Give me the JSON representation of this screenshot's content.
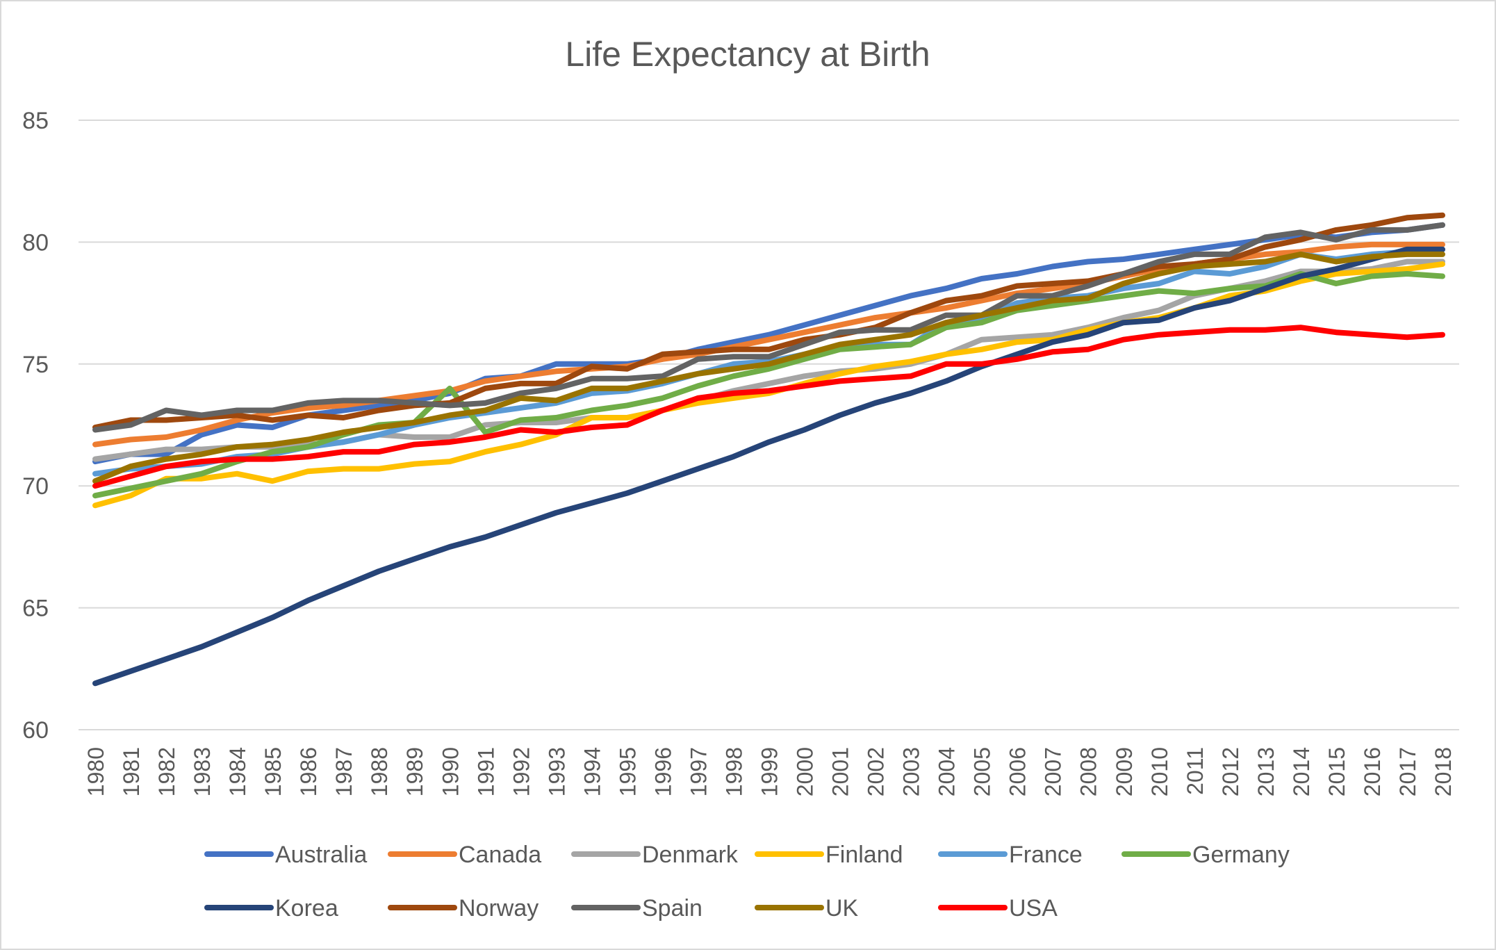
{
  "chart_data": {
    "type": "line",
    "title": "Life Expectancy at Birth",
    "xlabel": "",
    "ylabel": "",
    "ylim": [
      60,
      85
    ],
    "yticks": [
      60,
      65,
      70,
      75,
      80,
      85
    ],
    "grid": true,
    "legend_placement": "bottom",
    "x": [
      1980,
      1981,
      1982,
      1983,
      1984,
      1985,
      1986,
      1987,
      1988,
      1989,
      1990,
      1991,
      1992,
      1993,
      1994,
      1995,
      1996,
      1997,
      1998,
      1999,
      2000,
      2001,
      2002,
      2003,
      2004,
      2005,
      2006,
      2007,
      2008,
      2009,
      2010,
      2011,
      2012,
      2013,
      2014,
      2015,
      2016,
      2017,
      2018
    ],
    "series": [
      {
        "name": "Australia",
        "color": "#4472C4",
        "values": [
          71.0,
          71.3,
          71.3,
          72.1,
          72.5,
          72.4,
          72.9,
          73.1,
          73.3,
          73.5,
          73.8,
          74.4,
          74.5,
          75.0,
          75.0,
          75.0,
          75.2,
          75.6,
          75.9,
          76.2,
          76.6,
          77.0,
          77.4,
          77.8,
          78.1,
          78.5,
          78.7,
          79.0,
          79.2,
          79.3,
          79.5,
          79.7,
          79.9,
          80.1,
          80.3,
          80.2,
          80.4,
          80.5,
          80.7
        ]
      },
      {
        "name": "Canada",
        "color": "#ED7D31",
        "values": [
          71.7,
          71.9,
          72.0,
          72.3,
          72.7,
          73.0,
          73.2,
          73.3,
          73.5,
          73.7,
          73.9,
          74.3,
          74.5,
          74.7,
          74.8,
          74.9,
          75.2,
          75.4,
          75.7,
          76.0,
          76.3,
          76.6,
          76.9,
          77.1,
          77.3,
          77.6,
          77.9,
          78.1,
          78.3,
          78.6,
          78.9,
          79.1,
          79.3,
          79.5,
          79.6,
          79.8,
          79.9,
          79.9,
          79.9
        ]
      },
      {
        "name": "Denmark",
        "color": "#A5A5A5",
        "values": [
          71.1,
          71.3,
          71.5,
          71.5,
          71.6,
          71.6,
          71.7,
          71.8,
          72.1,
          72.0,
          72.0,
          72.5,
          72.6,
          72.6,
          72.8,
          72.8,
          73.1,
          73.5,
          73.9,
          74.2,
          74.5,
          74.7,
          74.8,
          75.0,
          75.4,
          76.0,
          76.1,
          76.2,
          76.5,
          76.9,
          77.2,
          77.8,
          78.1,
          78.4,
          78.8,
          78.8,
          78.9,
          79.2,
          79.2
        ]
      },
      {
        "name": "Finland",
        "color": "#FFC000",
        "values": [
          69.2,
          69.6,
          70.3,
          70.3,
          70.5,
          70.2,
          70.6,
          70.7,
          70.7,
          70.9,
          71.0,
          71.4,
          71.7,
          72.1,
          72.8,
          72.8,
          73.1,
          73.4,
          73.6,
          73.8,
          74.2,
          74.6,
          74.9,
          75.1,
          75.4,
          75.6,
          75.9,
          76.0,
          76.4,
          76.7,
          76.9,
          77.3,
          77.8,
          78.0,
          78.4,
          78.7,
          78.8,
          78.9,
          79.1
        ]
      },
      {
        "name": "France",
        "color": "#5B9BD5",
        "values": [
          70.5,
          70.7,
          70.8,
          70.9,
          71.2,
          71.3,
          71.6,
          71.8,
          72.1,
          72.5,
          72.8,
          73.0,
          73.2,
          73.4,
          73.8,
          73.9,
          74.2,
          74.6,
          75.0,
          75.1,
          75.4,
          75.7,
          75.8,
          75.8,
          76.7,
          76.9,
          77.5,
          77.7,
          77.8,
          78.1,
          78.3,
          78.8,
          78.7,
          79.0,
          79.5,
          79.3,
          79.5,
          79.6,
          79.7
        ]
      },
      {
        "name": "Germany",
        "color": "#70AD47",
        "values": [
          69.6,
          69.9,
          70.2,
          70.5,
          71.0,
          71.4,
          71.6,
          72.1,
          72.5,
          72.6,
          74.0,
          72.2,
          72.7,
          72.8,
          73.1,
          73.3,
          73.6,
          74.1,
          74.5,
          74.8,
          75.2,
          75.6,
          75.7,
          75.8,
          76.5,
          76.7,
          77.2,
          77.4,
          77.6,
          77.8,
          78.0,
          77.9,
          78.1,
          78.2,
          78.7,
          78.3,
          78.6,
          78.7,
          78.6
        ]
      },
      {
        "name": "Korea",
        "color": "#264478",
        "values": [
          61.9,
          62.4,
          62.9,
          63.4,
          64.0,
          64.6,
          65.3,
          65.9,
          66.5,
          67.0,
          67.5,
          67.9,
          68.4,
          68.9,
          69.3,
          69.7,
          70.2,
          70.7,
          71.2,
          71.8,
          72.3,
          72.9,
          73.4,
          73.8,
          74.3,
          74.9,
          75.4,
          75.9,
          76.2,
          76.7,
          76.8,
          77.3,
          77.6,
          78.1,
          78.6,
          78.9,
          79.3,
          79.7,
          79.7
        ]
      },
      {
        "name": "Norway",
        "color": "#9E480E",
        "values": [
          72.4,
          72.7,
          72.7,
          72.8,
          72.9,
          72.7,
          72.9,
          72.8,
          73.1,
          73.3,
          73.4,
          74.0,
          74.2,
          74.2,
          74.9,
          74.8,
          75.4,
          75.5,
          75.6,
          75.6,
          76.0,
          76.2,
          76.5,
          77.1,
          77.6,
          77.8,
          78.2,
          78.3,
          78.4,
          78.7,
          79.0,
          79.1,
          79.3,
          79.8,
          80.1,
          80.5,
          80.7,
          81.0,
          81.1
        ]
      },
      {
        "name": "Spain",
        "color": "#636363",
        "values": [
          72.3,
          72.5,
          73.1,
          72.9,
          73.1,
          73.1,
          73.4,
          73.5,
          73.5,
          73.4,
          73.3,
          73.4,
          73.8,
          74.0,
          74.4,
          74.4,
          74.5,
          75.2,
          75.3,
          75.3,
          75.8,
          76.3,
          76.4,
          76.4,
          77.0,
          77.0,
          77.8,
          77.8,
          78.2,
          78.7,
          79.2,
          79.5,
          79.5,
          80.2,
          80.4,
          80.1,
          80.5,
          80.5,
          80.7
        ]
      },
      {
        "name": "UK",
        "color": "#997300",
        "values": [
          70.2,
          70.8,
          71.1,
          71.3,
          71.6,
          71.7,
          71.9,
          72.2,
          72.4,
          72.6,
          72.9,
          73.1,
          73.6,
          73.5,
          74.0,
          74.0,
          74.3,
          74.6,
          74.8,
          75.0,
          75.4,
          75.8,
          76.0,
          76.2,
          76.7,
          77.0,
          77.3,
          77.6,
          77.7,
          78.3,
          78.7,
          79.0,
          79.1,
          79.2,
          79.5,
          79.2,
          79.4,
          79.5,
          79.5
        ]
      },
      {
        "name": "USA",
        "color": "#FF0000",
        "values": [
          70.0,
          70.4,
          70.8,
          71.0,
          71.1,
          71.1,
          71.2,
          71.4,
          71.4,
          71.7,
          71.8,
          72.0,
          72.3,
          72.2,
          72.4,
          72.5,
          73.1,
          73.6,
          73.8,
          73.9,
          74.1,
          74.3,
          74.4,
          74.5,
          75.0,
          75.0,
          75.2,
          75.5,
          75.6,
          76.0,
          76.2,
          76.3,
          76.4,
          76.4,
          76.5,
          76.3,
          76.2,
          76.1,
          76.2
        ]
      }
    ]
  }
}
